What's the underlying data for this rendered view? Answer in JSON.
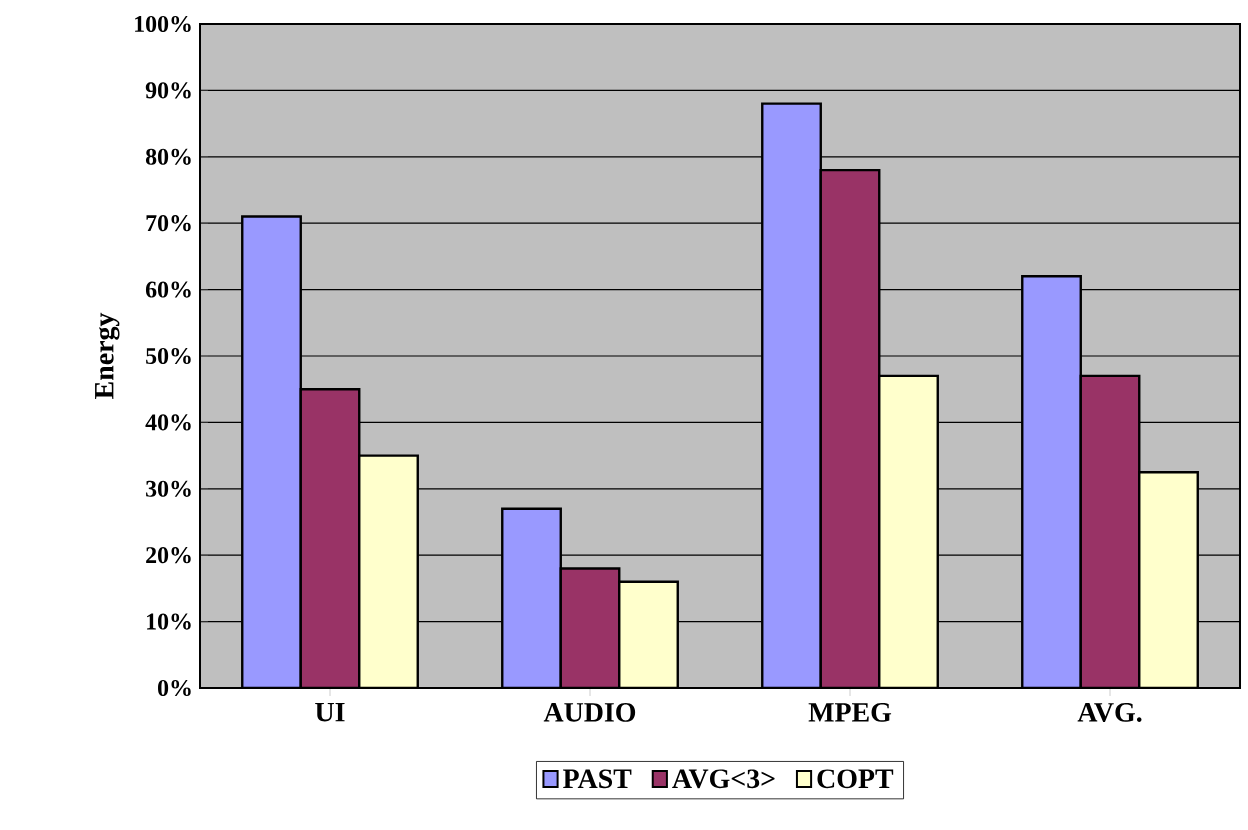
{
  "chart_data": {
    "type": "bar",
    "ylabel": "Energy",
    "categories": [
      "UI",
      "AUDIO",
      "MPEG",
      "AVG."
    ],
    "series": [
      {
        "name": "PAST",
        "color": "#9999ff",
        "values": [
          71,
          27,
          88,
          62
        ]
      },
      {
        "name": "AVG<3>",
        "color": "#993366",
        "values": [
          45,
          18,
          78,
          47
        ]
      },
      {
        "name": "COPT",
        "color": "#ffffcc",
        "values": [
          35,
          16,
          47,
          32.5
        ]
      }
    ],
    "ylim": [
      0,
      100
    ],
    "yticks": [
      {
        "value": 0,
        "label": "0%"
      },
      {
        "value": 10,
        "label": "10%"
      },
      {
        "value": 20,
        "label": "20%"
      },
      {
        "value": 30,
        "label": "30%"
      },
      {
        "value": 40,
        "label": "40%"
      },
      {
        "value": 50,
        "label": "50%"
      },
      {
        "value": 60,
        "label": "60%"
      },
      {
        "value": 70,
        "label": "70%"
      },
      {
        "value": 80,
        "label": "80%"
      },
      {
        "value": 90,
        "label": "90%"
      },
      {
        "value": 100,
        "label": "100%"
      }
    ],
    "grid": "y",
    "legend": "bottom"
  }
}
